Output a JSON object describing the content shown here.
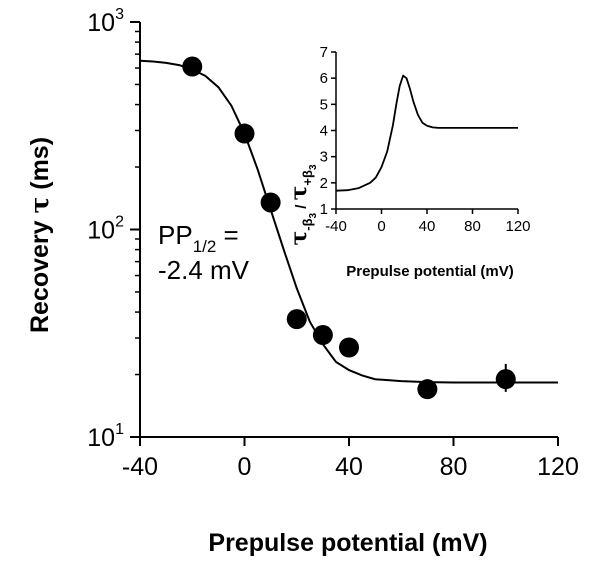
{
  "chart_data": [
    {
      "type": "scatter",
      "xlabel": "Prepulse potential (mV)",
      "ylabel_main": "Recovery ",
      "ylabel_symbol": "τ",
      "ylabel_unit": " (ms)",
      "xlim": [
        -40,
        120
      ],
      "ylim": [
        10,
        1000
      ],
      "yscale": "log",
      "xticks": [
        -40,
        0,
        40,
        80,
        120
      ],
      "xtick_labels": [
        "-40",
        "0",
        "40",
        "80",
        "120"
      ],
      "yticks": [
        10,
        100,
        1000
      ],
      "ytick_labels": [
        {
          "base": "10",
          "exp": "1"
        },
        {
          "base": "10",
          "exp": "2"
        },
        {
          "base": "10",
          "exp": "3"
        }
      ],
      "series": [
        {
          "points": [
            {
              "x": -20,
              "y": 610
            },
            {
              "x": 0,
              "y": 290
            },
            {
              "x": 10,
              "y": 135
            },
            {
              "x": 20,
              "y": 37
            },
            {
              "x": 30,
              "y": 31
            },
            {
              "x": 40,
              "y": 27
            },
            {
              "x": 70,
              "y": 17
            },
            {
              "x": 100,
              "y": 19,
              "err_low": 16.5,
              "err_high": 22.5
            }
          ]
        }
      ],
      "fit": {
        "type": "boltzmann",
        "x": [
          -40,
          -35,
          -30,
          -25,
          -20,
          -15,
          -10,
          -5,
          0,
          5,
          10,
          15,
          20,
          25,
          30,
          35,
          40,
          45,
          50,
          60,
          70,
          80,
          90,
          100,
          110,
          120
        ],
        "y": [
          650,
          645,
          635,
          620,
          590,
          550,
          485,
          395,
          290,
          195,
          125,
          80,
          52,
          36,
          28,
          23,
          21,
          19.8,
          19,
          18.6,
          18.4,
          18.3,
          18.3,
          18.3,
          18.3,
          18.3
        ]
      },
      "annotation": {
        "line1_base": "PP",
        "line1_sub": "1/2",
        "line1_suffix": " =",
        "line2": "-2.4 mV"
      }
    },
    {
      "type": "line",
      "xlabel": "Prepulse potential (mV)",
      "ylabel": {
        "num_tau": "τ",
        "num_sub_prefix": "-β",
        "num_sub_index": "3",
        "slash": " / ",
        "den_tau": "τ",
        "den_sub_prefix": "+β",
        "den_sub_index": "3"
      },
      "xlim": [
        -40,
        120
      ],
      "ylim": [
        1,
        7
      ],
      "xticks": [
        -40,
        0,
        40,
        80,
        120
      ],
      "xtick_labels": [
        "-40",
        "0",
        "40",
        "80",
        "120"
      ],
      "yticks": [
        1,
        2,
        3,
        4,
        5,
        6,
        7
      ],
      "ytick_labels": [
        "1",
        "2",
        "3",
        "4",
        "5",
        "6",
        "7"
      ],
      "series": [
        {
          "x": [
            -40,
            -30,
            -20,
            -10,
            -5,
            0,
            5,
            10,
            13,
            16,
            19,
            22,
            25,
            28,
            32,
            36,
            40,
            45,
            50,
            60,
            80,
            100,
            120
          ],
          "y": [
            1.7,
            1.72,
            1.8,
            2.0,
            2.2,
            2.6,
            3.2,
            4.2,
            5.0,
            5.7,
            6.1,
            6.0,
            5.6,
            5.1,
            4.6,
            4.3,
            4.18,
            4.12,
            4.1,
            4.1,
            4.1,
            4.1,
            4.1
          ]
        }
      ]
    }
  ]
}
